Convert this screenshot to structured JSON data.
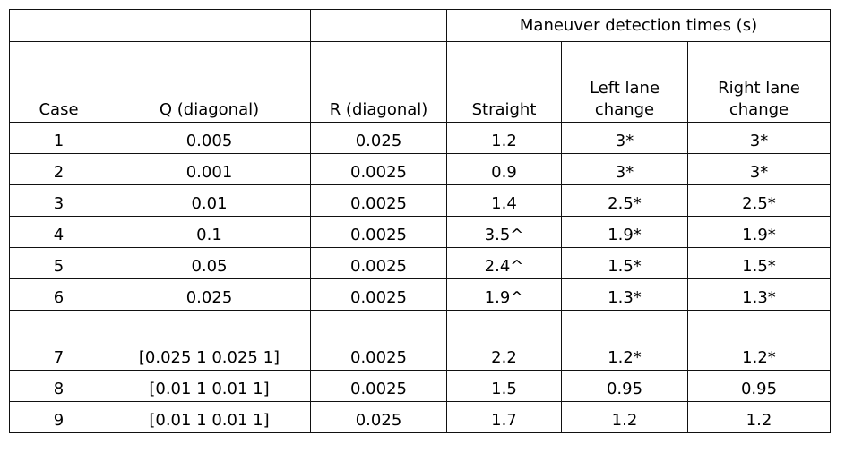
{
  "table": {
    "group_header": "Maneuver detection times (s)",
    "headers": [
      "Case",
      "Q (diagonal)",
      "R (diagonal)",
      "Straight",
      "Left lane change",
      "Right lane change"
    ],
    "rows": [
      [
        "1",
        "0.005",
        "0.025",
        "1.2",
        "3*",
        "3*"
      ],
      [
        "2",
        "0.001",
        "0.0025",
        "0.9",
        "3*",
        "3*"
      ],
      [
        "3",
        "0.01",
        "0.0025",
        "1.4",
        "2.5*",
        "2.5*"
      ],
      [
        "4",
        "0.1",
        "0.0025",
        "3.5^",
        "1.9*",
        "1.9*"
      ],
      [
        "5",
        "0.05",
        "0.0025",
        "2.4^",
        "1.5*",
        "1.5*"
      ],
      [
        "6",
        "0.025",
        "0.0025",
        "1.9^",
        "1.3*",
        "1.3*"
      ],
      [
        "7",
        "[0.025 1 0.025 1]",
        "0.0025",
        "2.2",
        "1.2*",
        "1.2*"
      ],
      [
        "8",
        "[0.01 1 0.01 1]",
        "0.0025",
        "1.5",
        "0.95",
        "0.95"
      ],
      [
        "9",
        "[0.01 1 0.01 1]",
        "0.025",
        "1.7",
        "1.2",
        "1.2"
      ]
    ]
  }
}
